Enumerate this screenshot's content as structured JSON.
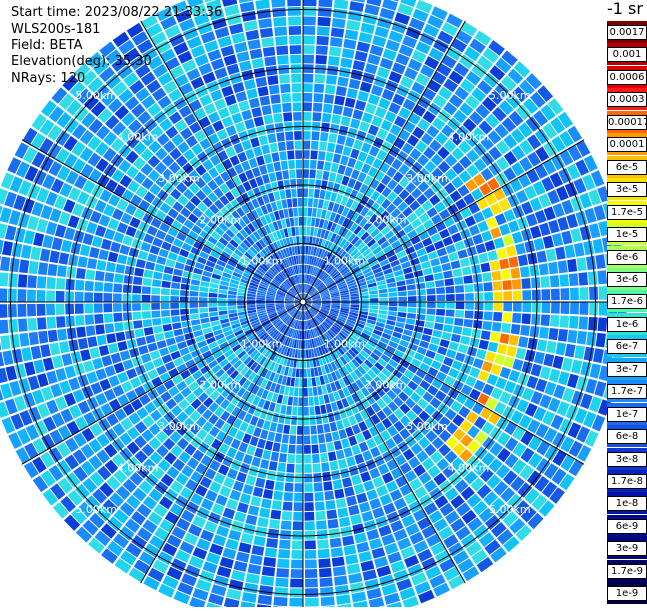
{
  "header": {
    "start_time": "Start time: 2023/08/22 21:33:36",
    "instrument": "WLS200s-181",
    "field": "Field: BETA",
    "elevation": "Elevation(deg): 35.30",
    "nrays": "NRays: 120"
  },
  "colorbar": {
    "unit_label": "-1 sr",
    "labels": [
      "0.0017",
      "0.001",
      "0.0006",
      "0.0003",
      "0.00017",
      "0.0001",
      "6e-5",
      "3e-5",
      "1.7e-5",
      "1e-5",
      "6e-6",
      "3e-6",
      "1.7e-6",
      "1e-6",
      "6e-7",
      "3e-7",
      "1.7e-7",
      "1e-7",
      "6e-8",
      "3e-8",
      "1.7e-8",
      "1e-8",
      "6e-9",
      "3e-9",
      "1.7e-9",
      "1e-9"
    ],
    "colors": [
      "#7a0000",
      "#b20000",
      "#dd0000",
      "#ff1a1a",
      "#ff6a00",
      "#ff9a00",
      "#ffbf00",
      "#ffe000",
      "#f4ff00",
      "#d2ff2a",
      "#a8ff55",
      "#7cff82",
      "#4cf5a8",
      "#2de2d0",
      "#19c8f0",
      "#10a8ff",
      "#1a8cff",
      "#1a6cf0",
      "#1850e0",
      "#1236d0",
      "#0a22c0",
      "#0612a8",
      "#030a90",
      "#000878",
      "#000060",
      "#000048"
    ]
  },
  "chart_data": {
    "type": "heatmap",
    "projection": "polar PPI scan",
    "field": "BETA",
    "elevation_deg": 35.3,
    "n_rays": 120,
    "range_rings_km": [
      1.0,
      2.0,
      3.0,
      4.0,
      5.0
    ],
    "range_ring_labels": [
      "1.00km",
      "2.00km",
      "3.00km",
      "4.00km",
      "5.00km"
    ],
    "max_range_km": 5.55,
    "background_level": "1e-7 to 3e-6",
    "near_center_level": "3e-8 to 1e-7",
    "enhanced_band": {
      "description": "arc of high backscatter east of the lidar",
      "range_km": [
        3.0,
        4.0
      ],
      "azimuth_deg": [
        55,
        135
      ],
      "level": "1e-5 to 6e-5"
    },
    "grid": true
  }
}
